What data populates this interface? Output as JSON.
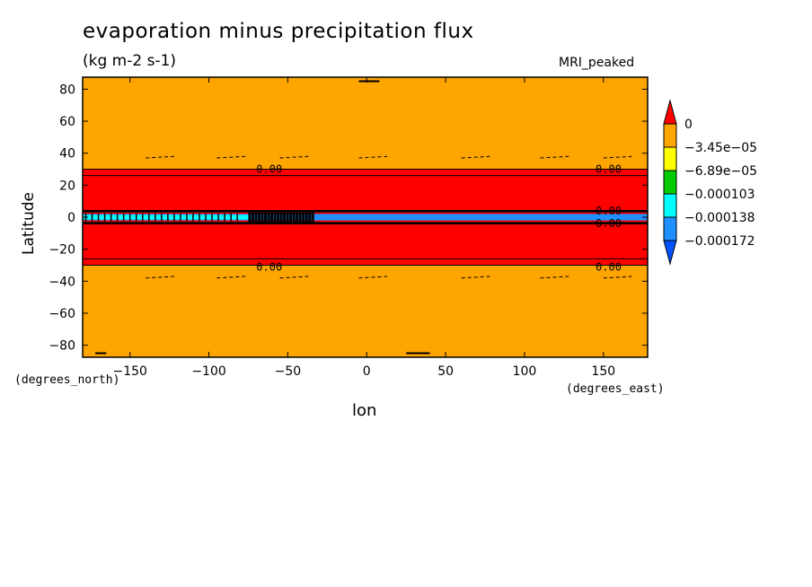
{
  "title": "evaporation minus precipitation flux",
  "units": "(kg m-2 s-1)",
  "model": "MRI_peaked",
  "chart_data": {
    "type": "heatmap",
    "title": "evaporation minus precipitation flux",
    "subtitle": "(kg m-2 s-1)",
    "xlabel": "lon",
    "ylabel": "Latitude",
    "x_unit": "(degrees_east)",
    "y_unit": "(degrees_north)",
    "xlim": [
      -180,
      178
    ],
    "ylim": [
      -87.5,
      87.5
    ],
    "x_ticks": [
      -150,
      -100,
      -50,
      0,
      50,
      100,
      150
    ],
    "y_ticks": [
      -80,
      -60,
      -40,
      -20,
      0,
      20,
      40,
      60,
      80
    ],
    "colorbar": {
      "labels": [
        "0",
        "-3.45e-05",
        "-6.89e-05",
        "-0.000103",
        "-0.000138",
        "-0.000172"
      ],
      "colors": [
        "#ff0000",
        "#ffa500",
        "#ffff00",
        "#00cc00",
        "#00ffff",
        "#1e90ff",
        "#0050ff"
      ]
    },
    "bands": [
      {
        "lat": [
          30,
          87.5
        ],
        "color": "#ffa500"
      },
      {
        "lat": [
          -30,
          30
        ],
        "color": "#ff0000"
      },
      {
        "lat": [
          -87.5,
          -30
        ],
        "color": "#ffa500"
      },
      {
        "lat": [
          -2,
          2
        ],
        "color": "#1e90ff"
      }
    ],
    "contour_labels": [
      {
        "text": "0.00",
        "lon": -70,
        "lat": 30
      },
      {
        "text": "0.00",
        "lon": 145,
        "lat": 30
      },
      {
        "text": "0.00",
        "lon": -70,
        "lat": -31
      },
      {
        "text": "0.00",
        "lon": 145,
        "lat": -31
      },
      {
        "text": "0.00",
        "lon": 145,
        "lat": 4
      },
      {
        "text": "0.00",
        "lon": 145,
        "lat": -4
      }
    ]
  }
}
